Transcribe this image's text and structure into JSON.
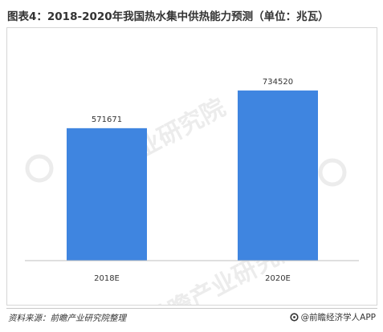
{
  "title": "图表4：2018-2020年我国热水集中供热能力预测（单位：兆瓦）",
  "source": "资料来源：前瞻产业研究院整理",
  "brand": "@前瞻经济学人APP",
  "watermark_text": "前瞻产业研究院",
  "colors": {
    "bar": "#3f85e0",
    "text": "#333333",
    "axis": "#bfbfbf",
    "watermark": "#ececec"
  },
  "icons": {
    "brand": "qianzhan-logo-icon"
  },
  "chart_data": {
    "type": "bar",
    "categories": [
      "2018E",
      "2020E"
    ],
    "values": [
      571671,
      734520
    ],
    "ylim": [
      0,
      900000
    ],
    "grid": false,
    "legend": "none",
    "xlabel": "",
    "ylabel": ""
  }
}
